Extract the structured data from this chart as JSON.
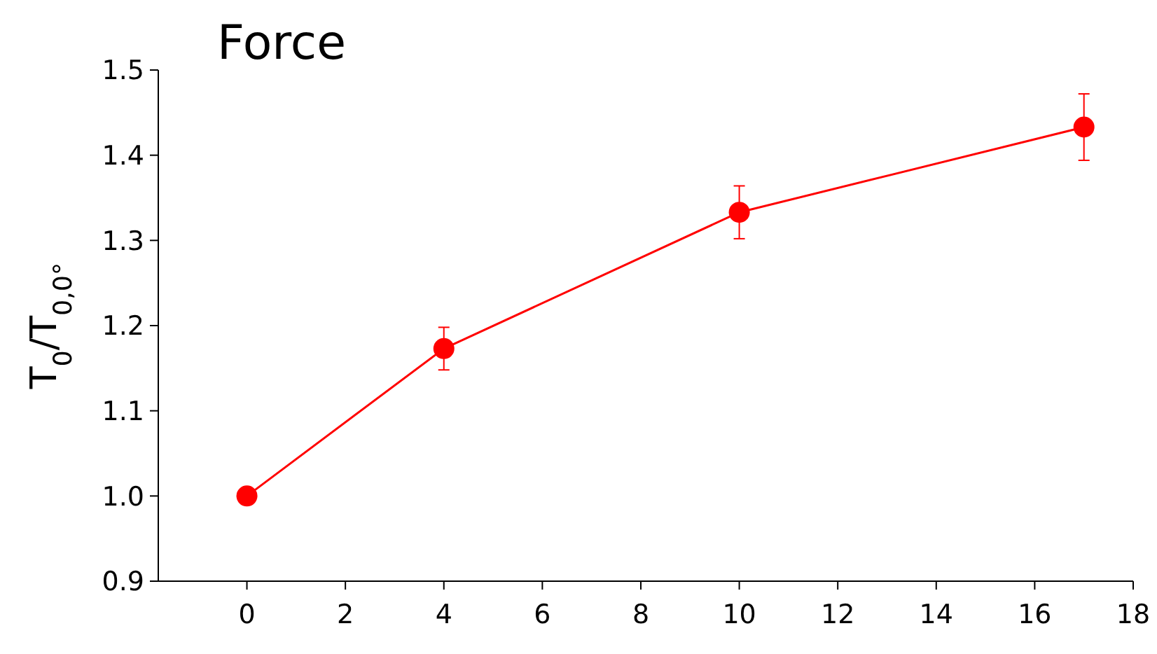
{
  "chart_data": {
    "type": "line",
    "title": "Force",
    "ylabel": "T$_{0}$/T$_{0,0°}$",
    "x": [
      0,
      4,
      10,
      17
    ],
    "series": [
      {
        "color": "#ff0000",
        "values": [
          1.0,
          1.173,
          1.333,
          1.433
        ],
        "errors": [
          null,
          0.025,
          0.031,
          0.039
        ]
      }
    ],
    "xlim": [
      -1.8,
      18
    ],
    "xticks": [
      0,
      2,
      4,
      6,
      8,
      10,
      12,
      14,
      16,
      18
    ],
    "ylim": [
      0.9,
      1.5
    ],
    "yticks": [
      {
        "value": 0.9,
        "label": "0.9"
      },
      {
        "value": 1.0,
        "label": "1.0"
      },
      {
        "value": 1.1,
        "label": "1.1"
      },
      {
        "value": 1.2,
        "label": "1.2"
      },
      {
        "value": 1.3,
        "label": "1.3"
      },
      {
        "value": 1.4,
        "label": "1.4"
      },
      {
        "value": 1.5,
        "label": "1.5"
      }
    ],
    "marker": "circle",
    "line_style": "solid",
    "grid": false
  }
}
